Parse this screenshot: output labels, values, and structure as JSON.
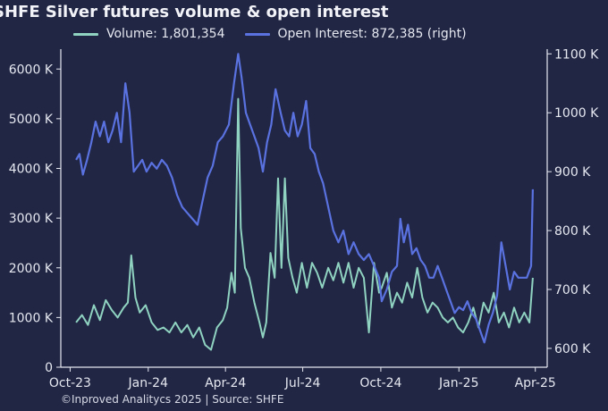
{
  "chart_data": {
    "type": "line",
    "title": "SHFE Silver futures volume & open interest",
    "source": "©Inproved Analitycs 2025 | Source: SHFE",
    "x_ticks": [
      "Oct-23",
      "Jan-24",
      "Apr-24",
      "Jul-24",
      "Oct-24",
      "Jan-25",
      "Apr-25"
    ],
    "xlim": [
      "2023-09-20",
      "2025-04-15"
    ],
    "left_axis": {
      "ticks": [
        "0",
        "1000 K",
        "2000 K",
        "3000 K",
        "4000 K",
        "5000 K",
        "6000 K"
      ],
      "ylim": [
        0,
        6400
      ]
    },
    "right_axis": {
      "ticks": [
        "600 K",
        "700 K",
        "800 K",
        "900 K",
        "1000 K",
        "1100 K"
      ],
      "ylim": [
        568,
        1108
      ]
    },
    "legend_placement": "top",
    "grid": false,
    "series": [
      {
        "name": "Volume: 1,801,354",
        "axis": "left",
        "unit": "K",
        "color": "#8fd3c0",
        "points": [
          [
            "2023-10-08",
            900
          ],
          [
            "2023-10-15",
            1050
          ],
          [
            "2023-10-22",
            850
          ],
          [
            "2023-10-29",
            1250
          ],
          [
            "2023-11-05",
            950
          ],
          [
            "2023-11-12",
            1350
          ],
          [
            "2023-11-19",
            1150
          ],
          [
            "2023-11-26",
            1000
          ],
          [
            "2023-12-03",
            1200
          ],
          [
            "2023-12-08",
            1300
          ],
          [
            "2023-12-12",
            2250
          ],
          [
            "2023-12-17",
            1400
          ],
          [
            "2023-12-22",
            1100
          ],
          [
            "2023-12-29",
            1250
          ],
          [
            "2024-01-05",
            900
          ],
          [
            "2024-01-12",
            750
          ],
          [
            "2024-01-19",
            800
          ],
          [
            "2024-01-26",
            700
          ],
          [
            "2024-02-02",
            900
          ],
          [
            "2024-02-09",
            700
          ],
          [
            "2024-02-16",
            850
          ],
          [
            "2024-02-23",
            600
          ],
          [
            "2024-03-01",
            800
          ],
          [
            "2024-03-08",
            450
          ],
          [
            "2024-03-15",
            350
          ],
          [
            "2024-03-22",
            800
          ],
          [
            "2024-03-29",
            950
          ],
          [
            "2024-04-03",
            1200
          ],
          [
            "2024-04-08",
            1900
          ],
          [
            "2024-04-12",
            1500
          ],
          [
            "2024-04-16",
            5400
          ],
          [
            "2024-04-19",
            2800
          ],
          [
            "2024-04-24",
            2000
          ],
          [
            "2024-04-29",
            1800
          ],
          [
            "2024-05-05",
            1300
          ],
          [
            "2024-05-11",
            900
          ],
          [
            "2024-05-15",
            600
          ],
          [
            "2024-05-19",
            900
          ],
          [
            "2024-05-24",
            2300
          ],
          [
            "2024-05-29",
            1800
          ],
          [
            "2024-06-02",
            3800
          ],
          [
            "2024-06-06",
            2000
          ],
          [
            "2024-06-10",
            3800
          ],
          [
            "2024-06-14",
            2200
          ],
          [
            "2024-06-19",
            1800
          ],
          [
            "2024-06-24",
            1500
          ],
          [
            "2024-06-30",
            2100
          ],
          [
            "2024-07-06",
            1600
          ],
          [
            "2024-07-12",
            2100
          ],
          [
            "2024-07-18",
            1900
          ],
          [
            "2024-07-24",
            1600
          ],
          [
            "2024-07-31",
            2000
          ],
          [
            "2024-08-06",
            1750
          ],
          [
            "2024-08-12",
            2100
          ],
          [
            "2024-08-18",
            1700
          ],
          [
            "2024-08-24",
            2100
          ],
          [
            "2024-08-30",
            1600
          ],
          [
            "2024-09-05",
            2000
          ],
          [
            "2024-09-11",
            1800
          ],
          [
            "2024-09-17",
            700
          ],
          [
            "2024-09-23",
            2100
          ],
          [
            "2024-09-29",
            1500
          ],
          [
            "2024-10-02",
            1600
          ],
          [
            "2024-10-08",
            1900
          ],
          [
            "2024-10-14",
            1200
          ],
          [
            "2024-10-20",
            1500
          ],
          [
            "2024-10-26",
            1300
          ],
          [
            "2024-11-01",
            1700
          ],
          [
            "2024-11-07",
            1400
          ],
          [
            "2024-11-13",
            2000
          ],
          [
            "2024-11-19",
            1400
          ],
          [
            "2024-11-25",
            1100
          ],
          [
            "2024-12-01",
            1300
          ],
          [
            "2024-12-07",
            1200
          ],
          [
            "2024-12-13",
            1000
          ],
          [
            "2024-12-19",
            900
          ],
          [
            "2024-12-25",
            1000
          ],
          [
            "2024-12-31",
            800
          ],
          [
            "2025-01-06",
            700
          ],
          [
            "2025-01-12",
            900
          ],
          [
            "2025-01-18",
            1200
          ],
          [
            "2025-01-24",
            800
          ],
          [
            "2025-01-30",
            1300
          ],
          [
            "2025-02-05",
            1100
          ],
          [
            "2025-02-11",
            1500
          ],
          [
            "2025-02-17",
            900
          ],
          [
            "2025-02-23",
            1100
          ],
          [
            "2025-03-01",
            800
          ],
          [
            "2025-03-07",
            1200
          ],
          [
            "2025-03-13",
            900
          ],
          [
            "2025-03-19",
            1100
          ],
          [
            "2025-03-25",
            900
          ],
          [
            "2025-03-29",
            1800
          ]
        ]
      },
      {
        "name": "Open Interest: 872,385 (right)",
        "axis": "right",
        "unit": "K",
        "color": "#5a72e0",
        "points": [
          [
            "2023-10-08",
            920
          ],
          [
            "2023-10-12",
            930
          ],
          [
            "2023-10-16",
            895
          ],
          [
            "2023-10-21",
            920
          ],
          [
            "2023-10-26",
            950
          ],
          [
            "2023-10-31",
            985
          ],
          [
            "2023-11-05",
            960
          ],
          [
            "2023-11-10",
            985
          ],
          [
            "2023-11-15",
            950
          ],
          [
            "2023-11-20",
            970
          ],
          [
            "2023-11-25",
            1000
          ],
          [
            "2023-11-30",
            950
          ],
          [
            "2023-12-05",
            1050
          ],
          [
            "2023-12-10",
            1000
          ],
          [
            "2023-12-15",
            900
          ],
          [
            "2023-12-20",
            910
          ],
          [
            "2023-12-25",
            920
          ],
          [
            "2023-12-30",
            900
          ],
          [
            "2024-01-05",
            915
          ],
          [
            "2024-01-11",
            905
          ],
          [
            "2024-01-17",
            920
          ],
          [
            "2024-01-23",
            910
          ],
          [
            "2024-01-29",
            890
          ],
          [
            "2024-02-04",
            860
          ],
          [
            "2024-02-10",
            840
          ],
          [
            "2024-02-16",
            830
          ],
          [
            "2024-02-22",
            820
          ],
          [
            "2024-02-28",
            810
          ],
          [
            "2024-03-05",
            850
          ],
          [
            "2024-03-11",
            890
          ],
          [
            "2024-03-17",
            910
          ],
          [
            "2024-03-23",
            950
          ],
          [
            "2024-03-29",
            960
          ],
          [
            "2024-04-05",
            980
          ],
          [
            "2024-04-11",
            1050
          ],
          [
            "2024-04-16",
            1100
          ],
          [
            "2024-04-20",
            1060
          ],
          [
            "2024-04-25",
            1000
          ],
          [
            "2024-04-30",
            980
          ],
          [
            "2024-05-05",
            960
          ],
          [
            "2024-05-10",
            940
          ],
          [
            "2024-05-15",
            900
          ],
          [
            "2024-05-20",
            950
          ],
          [
            "2024-05-25",
            980
          ],
          [
            "2024-05-30",
            1040
          ],
          [
            "2024-06-05",
            1000
          ],
          [
            "2024-06-10",
            970
          ],
          [
            "2024-06-15",
            960
          ],
          [
            "2024-06-20",
            1000
          ],
          [
            "2024-06-25",
            960
          ],
          [
            "2024-06-30",
            980
          ],
          [
            "2024-07-05",
            1020
          ],
          [
            "2024-07-10",
            940
          ],
          [
            "2024-07-15",
            930
          ],
          [
            "2024-07-20",
            900
          ],
          [
            "2024-07-25",
            880
          ],
          [
            "2024-07-31",
            840
          ],
          [
            "2024-08-06",
            800
          ],
          [
            "2024-08-12",
            780
          ],
          [
            "2024-08-18",
            800
          ],
          [
            "2024-08-24",
            760
          ],
          [
            "2024-08-30",
            780
          ],
          [
            "2024-09-05",
            760
          ],
          [
            "2024-09-11",
            750
          ],
          [
            "2024-09-17",
            760
          ],
          [
            "2024-09-23",
            740
          ],
          [
            "2024-09-29",
            720
          ],
          [
            "2024-10-02",
            680
          ],
          [
            "2024-10-08",
            700
          ],
          [
            "2024-10-14",
            730
          ],
          [
            "2024-10-20",
            740
          ],
          [
            "2024-10-24",
            820
          ],
          [
            "2024-10-28",
            780
          ],
          [
            "2024-11-02",
            810
          ],
          [
            "2024-11-07",
            760
          ],
          [
            "2024-11-12",
            770
          ],
          [
            "2024-11-17",
            750
          ],
          [
            "2024-11-22",
            740
          ],
          [
            "2024-11-27",
            720
          ],
          [
            "2024-12-02",
            720
          ],
          [
            "2024-12-07",
            740
          ],
          [
            "2024-12-12",
            720
          ],
          [
            "2024-12-17",
            700
          ],
          [
            "2024-12-22",
            680
          ],
          [
            "2024-12-27",
            660
          ],
          [
            "2025-01-01",
            670
          ],
          [
            "2025-01-06",
            665
          ],
          [
            "2025-01-11",
            680
          ],
          [
            "2025-01-16",
            660
          ],
          [
            "2025-01-21",
            650
          ],
          [
            "2025-01-26",
            630
          ],
          [
            "2025-01-31",
            610
          ],
          [
            "2025-02-05",
            640
          ],
          [
            "2025-02-10",
            660
          ],
          [
            "2025-02-15",
            690
          ],
          [
            "2025-02-20",
            780
          ],
          [
            "2025-02-25",
            740
          ],
          [
            "2025-03-02",
            700
          ],
          [
            "2025-03-07",
            730
          ],
          [
            "2025-03-12",
            720
          ],
          [
            "2025-03-17",
            720
          ],
          [
            "2025-03-22",
            720
          ],
          [
            "2025-03-27",
            740
          ],
          [
            "2025-03-29",
            870
          ]
        ]
      }
    ]
  }
}
